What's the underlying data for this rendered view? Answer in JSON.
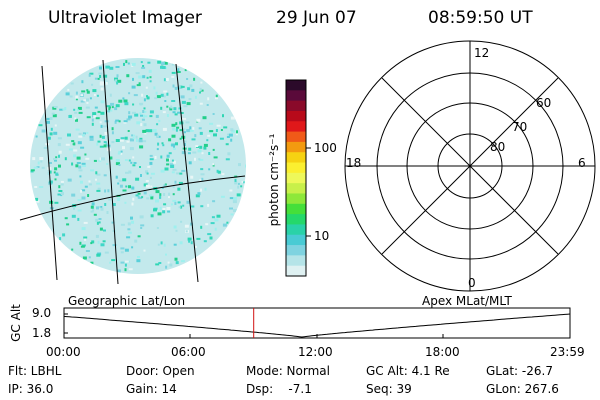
{
  "header": {
    "instrument": "Ultraviolet Imager",
    "date": "29 Jun 07",
    "time": "08:59:50 UT"
  },
  "colorbar": {
    "unit_label": "photon cm⁻²s⁻¹",
    "ticks": [
      {
        "label": "100",
        "value": 100
      },
      {
        "label": "10",
        "value": 10
      }
    ],
    "colors": [
      "#2b0a2a",
      "#5a0a3a",
      "#8a0a2a",
      "#b80a1a",
      "#e0181a",
      "#f05a18",
      "#f39a10",
      "#f6d212",
      "#fbef30",
      "#eef85a",
      "#c8f04a",
      "#8ee83a",
      "#45df3a",
      "#25d86a",
      "#2ad2a8",
      "#49cbd4",
      "#7fd3e0",
      "#b5e4e8",
      "#dff1f2"
    ]
  },
  "polar_plot": {
    "mlt_labels": [
      {
        "label": "12",
        "pos": "top"
      },
      {
        "label": "18",
        "pos": "left"
      },
      {
        "label": "6",
        "pos": "right"
      },
      {
        "label": "0",
        "pos": "bottom"
      }
    ],
    "lat_labels": [
      "60",
      "70",
      "80"
    ]
  },
  "timeline": {
    "ylabel": "GC Alt",
    "yticks": [
      "9.0",
      "1.8"
    ],
    "left_title": "Geographic Lat/Lon",
    "right_title": "Apex MLat/MLT",
    "xticks": [
      "00:00",
      "06:00",
      "12:00",
      "18:00",
      "23:59"
    ],
    "marker_time_hours": 8.997
  },
  "footer": {
    "flt": "Flt: LBHL",
    "ip": "IP: 36.0",
    "door": "Door: Open",
    "gain": "Gain: 14",
    "mode": "Mode: Normal",
    "dsp": "Dsp:    -7.1",
    "gc_alt": "GC Alt: 4.1 Re",
    "seq": "Seq: 39",
    "glat": "GLat: -26.7",
    "glon": "GLon: 267.6"
  }
}
